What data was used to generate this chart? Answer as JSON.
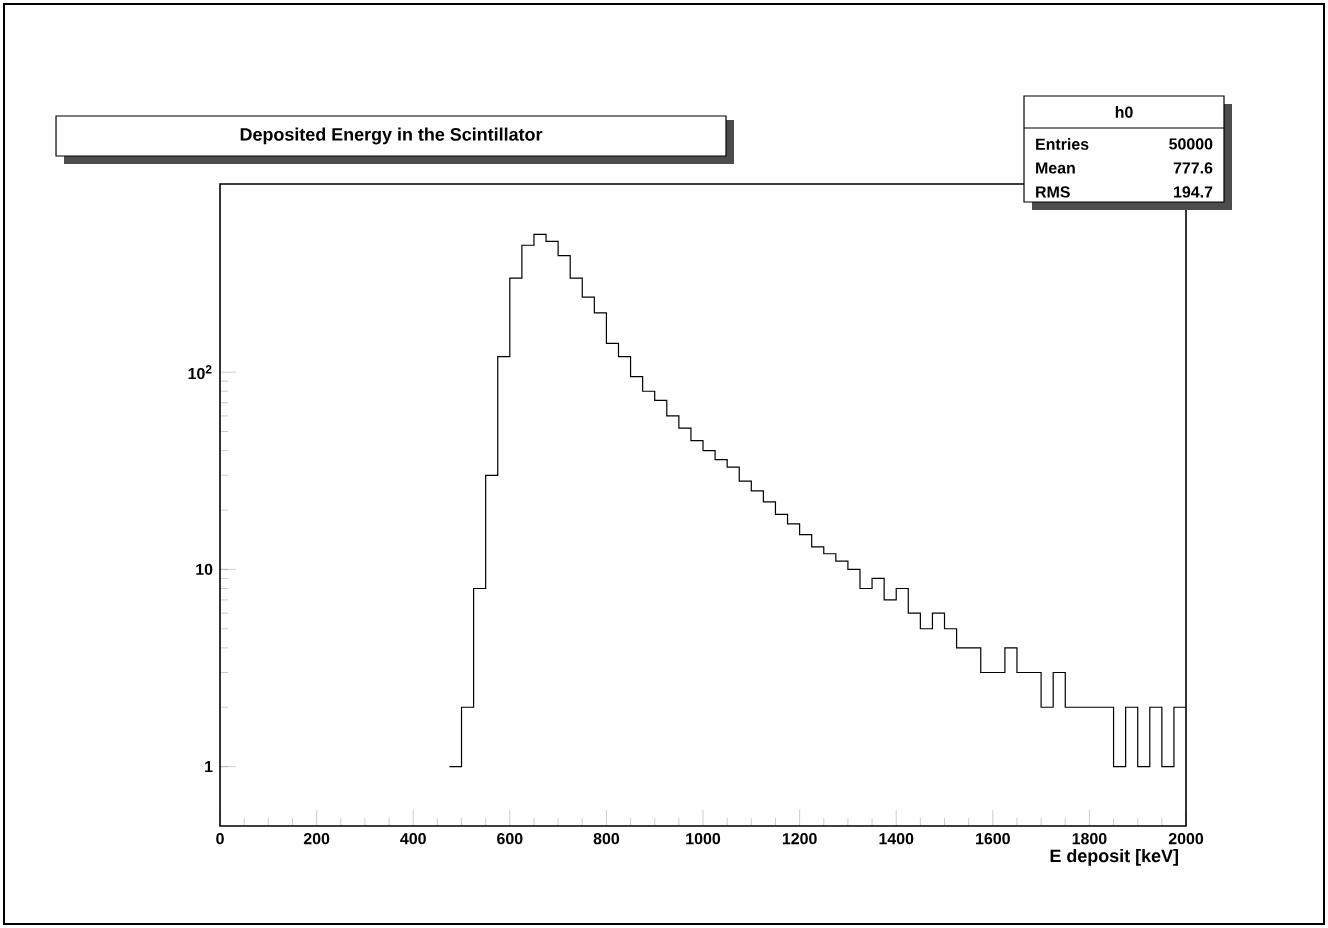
{
  "chart_data": {
    "type": "histogram",
    "title": "Deposited Energy in the Scintillator",
    "xlabel": "E deposit [keV]",
    "bins": [
      475,
      500,
      525,
      550,
      575,
      600,
      625,
      650,
      675,
      700,
      725,
      750,
      775,
      800,
      825,
      850,
      875,
      900,
      925,
      950,
      975,
      1000,
      1025,
      1050,
      1075,
      1100,
      1125,
      1150,
      1175,
      1200,
      1225,
      1250,
      1275,
      1300,
      1325,
      1350,
      1375,
      1400,
      1425,
      1450,
      1475,
      1500,
      1525,
      1550,
      1575,
      1600,
      1625,
      1650,
      1675,
      1700,
      1725,
      1750,
      1775,
      1800,
      1825,
      1850,
      1875,
      1900,
      1925,
      1950,
      1975,
      2000
    ],
    "values": [
      1,
      2,
      8,
      30,
      120,
      300,
      440,
      500,
      460,
      390,
      300,
      240,
      200,
      140,
      120,
      95,
      80,
      72,
      60,
      52,
      45,
      40,
      36,
      33,
      28,
      25,
      22,
      19,
      17,
      15,
      13,
      12,
      11,
      10,
      8,
      9,
      7,
      8,
      6,
      5,
      6,
      5,
      4,
      4,
      3,
      3,
      4,
      3,
      3,
      2,
      3,
      2,
      2,
      2,
      2,
      1,
      2,
      1,
      2,
      1,
      2
    ],
    "color": "#000000",
    "log": "y",
    "grid": false,
    "xlim": [
      0,
      2000
    ],
    "ylim": [
      0.5,
      900
    ],
    "xticks": [
      0,
      200,
      400,
      600,
      800,
      1000,
      1200,
      1400,
      1600,
      1800,
      2000
    ],
    "yticks": [
      1,
      10,
      {
        "value": 100,
        "label": "10$^{2}$"
      }
    ],
    "annotations": [
      "h0",
      "Entries",
      "50000",
      "Mean",
      "777.6",
      "RMS",
      "194.7"
    ]
  }
}
